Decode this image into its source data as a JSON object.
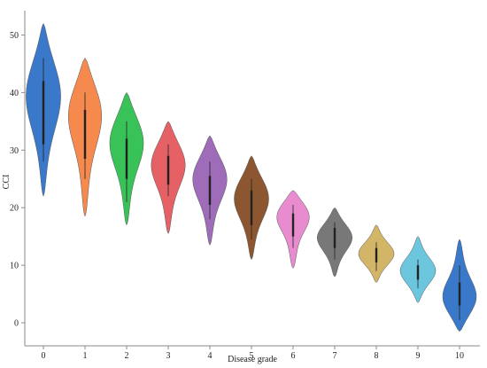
{
  "chart_data": {
    "type": "violin",
    "xlabel": "Disease grade",
    "ylabel": "CCI",
    "ylim": [
      -4,
      53
    ],
    "yticks": [
      0,
      10,
      20,
      30,
      40,
      50
    ],
    "grid": false,
    "categories": [
      "0",
      "1",
      "2",
      "3",
      "4",
      "5",
      "6",
      "7",
      "8",
      "9",
      "10"
    ],
    "colors": [
      "#3A78C9",
      "#F5894E",
      "#38C258",
      "#E56165",
      "#9E6CB8",
      "#8B5630",
      "#E98BCF",
      "#787878",
      "#D2B567",
      "#6CC6DE",
      "#3A78C9"
    ],
    "distributions": [
      {
        "category": "0",
        "min": 22,
        "max": 52,
        "mode": 40,
        "q1": 31,
        "q3": 42,
        "whisker_low": 28,
        "whisker_high": 46
      },
      {
        "category": "1",
        "min": 18.5,
        "max": 46,
        "mode": 37,
        "q1": 28.5,
        "q3": 37,
        "whisker_low": 25,
        "whisker_high": 40
      },
      {
        "category": "2",
        "min": 17,
        "max": 40,
        "mode": 32,
        "q1": 25,
        "q3": 32,
        "whisker_low": 21,
        "whisker_high": 35
      },
      {
        "category": "3",
        "min": 15.5,
        "max": 35,
        "mode": 28,
        "q1": 24,
        "q3": 29,
        "whisker_low": 22,
        "whisker_high": 31
      },
      {
        "category": "4",
        "min": 13.5,
        "max": 32.5,
        "mode": 25.5,
        "q1": 20.5,
        "q3": 25.5,
        "whisker_low": 18,
        "whisker_high": 28
      },
      {
        "category": "5",
        "min": 11,
        "max": 29,
        "mode": 22,
        "q1": 17,
        "q3": 23,
        "whisker_low": 14.5,
        "whisker_high": 25
      },
      {
        "category": "6",
        "min": 9.5,
        "max": 23,
        "mode": 19,
        "q1": 15,
        "q3": 19,
        "whisker_low": 13,
        "whisker_high": 20.5
      },
      {
        "category": "7",
        "min": 8,
        "max": 20,
        "mode": 15,
        "q1": 13,
        "q3": 16.5,
        "whisker_low": 11,
        "whisker_high": 17.5
      },
      {
        "category": "8",
        "min": 7,
        "max": 17,
        "mode": 12,
        "q1": 10.5,
        "q3": 13,
        "whisker_low": 9,
        "whisker_high": 14
      },
      {
        "category": "9",
        "min": 3.5,
        "max": 15,
        "mode": 9,
        "q1": 7.5,
        "q3": 10,
        "whisker_low": 6,
        "whisker_high": 11
      },
      {
        "category": "10",
        "min": -1.5,
        "max": 14.5,
        "mode": 4,
        "q1": 3,
        "q3": 7,
        "whisker_low": 0.5,
        "whisker_high": 10
      }
    ]
  }
}
